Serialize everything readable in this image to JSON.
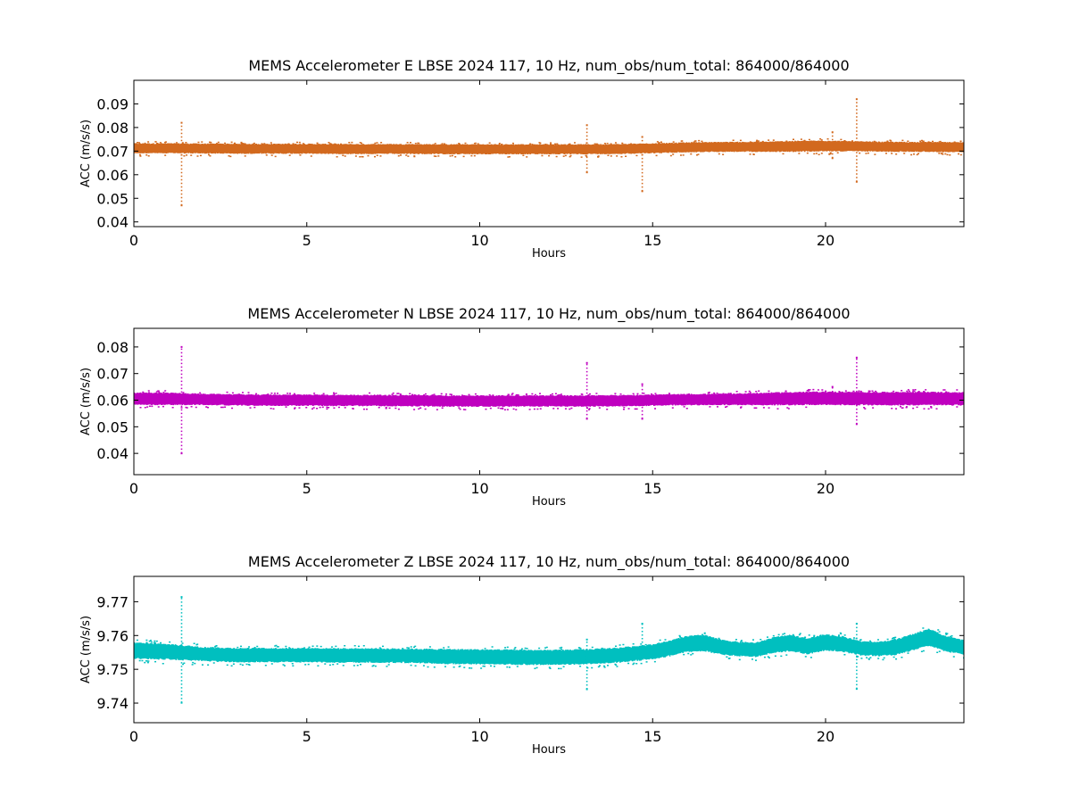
{
  "chart_data": [
    {
      "type": "scatter",
      "title": "MEMS Accelerometer E LBSE 2024 117, 10 Hz, num_obs/num_total: 864000/864000",
      "xlabel": "Hours",
      "ylabel": "ACC (m/s/s)",
      "xlim": [
        0,
        24
      ],
      "ylim": [
        0.038,
        0.1
      ],
      "xticks": [
        0,
        5,
        10,
        15,
        20
      ],
      "yticks": [
        0.04,
        0.05,
        0.06,
        0.07,
        0.08,
        0.09
      ],
      "ytick_labels": [
        "0.04",
        "0.05",
        "0.06",
        "0.07",
        "0.08",
        "0.09"
      ],
      "grid": false,
      "color": "#d2691e",
      "series": [
        {
          "x": [
            0,
            1,
            2,
            3,
            4,
            5,
            6,
            7,
            8,
            9,
            10,
            11,
            12,
            13,
            14,
            15,
            16,
            17,
            18,
            19,
            20,
            21,
            22,
            23,
            24
          ],
          "center": [
            0.0712,
            0.0712,
            0.0711,
            0.071,
            0.071,
            0.071,
            0.0709,
            0.0709,
            0.0709,
            0.0708,
            0.0708,
            0.0708,
            0.0708,
            0.0708,
            0.0709,
            0.0712,
            0.0716,
            0.0718,
            0.0718,
            0.072,
            0.0722,
            0.072,
            0.0718,
            0.0718,
            0.0716
          ],
          "half_band": [
            0.0022,
            0.0022,
            0.0022,
            0.0022,
            0.0022,
            0.0022,
            0.0022,
            0.0022,
            0.0022,
            0.0022,
            0.0022,
            0.0022,
            0.0022,
            0.0022,
            0.0022,
            0.0022,
            0.0022,
            0.0022,
            0.0022,
            0.0024,
            0.0024,
            0.0022,
            0.0022,
            0.0022,
            0.0022
          ]
        }
      ],
      "spikes": [
        {
          "x": 1.38,
          "min": 0.047,
          "max": 0.082
        },
        {
          "x": 13.1,
          "min": 0.061,
          "max": 0.081
        },
        {
          "x": 14.7,
          "min": 0.053,
          "max": 0.076
        },
        {
          "x": 20.2,
          "min": 0.067,
          "max": 0.078
        },
        {
          "x": 20.9,
          "min": 0.057,
          "max": 0.092
        }
      ]
    },
    {
      "type": "scatter",
      "title": "MEMS Accelerometer N LBSE 2024 117, 10 Hz, num_obs/num_total: 864000/864000",
      "xlabel": "Hours",
      "ylabel": "ACC (m/s/s)",
      "xlim": [
        0,
        24
      ],
      "ylim": [
        0.032,
        0.087
      ],
      "xticks": [
        0,
        5,
        10,
        15,
        20
      ],
      "yticks": [
        0.04,
        0.05,
        0.06,
        0.07,
        0.08
      ],
      "ytick_labels": [
        "0.04",
        "0.05",
        "0.06",
        "0.07",
        "0.08"
      ],
      "grid": false,
      "color": "#bf00bf",
      "series": [
        {
          "x": [
            0,
            1,
            2,
            3,
            4,
            5,
            6,
            7,
            8,
            9,
            10,
            11,
            12,
            13,
            14,
            15,
            16,
            17,
            18,
            19,
            20,
            21,
            22,
            23,
            24
          ],
          "center": [
            0.0605,
            0.0605,
            0.0603,
            0.0601,
            0.06,
            0.06,
            0.0599,
            0.0599,
            0.0598,
            0.0597,
            0.0597,
            0.0597,
            0.0597,
            0.0597,
            0.0598,
            0.06,
            0.0602,
            0.0603,
            0.0604,
            0.0606,
            0.0607,
            0.0606,
            0.0606,
            0.0606,
            0.0605
          ],
          "half_band": [
            0.0024,
            0.0024,
            0.0022,
            0.0022,
            0.0022,
            0.0022,
            0.0022,
            0.0022,
            0.0022,
            0.0022,
            0.0022,
            0.0022,
            0.0022,
            0.0022,
            0.0022,
            0.0022,
            0.0022,
            0.0022,
            0.0024,
            0.0026,
            0.0026,
            0.0026,
            0.0026,
            0.0026,
            0.0026
          ]
        }
      ],
      "spikes": [
        {
          "x": 1.38,
          "min": 0.04,
          "max": 0.08
        },
        {
          "x": 13.1,
          "min": 0.053,
          "max": 0.074
        },
        {
          "x": 14.7,
          "min": 0.053,
          "max": 0.066
        },
        {
          "x": 20.2,
          "min": 0.059,
          "max": 0.065
        },
        {
          "x": 20.9,
          "min": 0.051,
          "max": 0.076
        }
      ]
    },
    {
      "type": "scatter",
      "title": "MEMS Accelerometer Z LBSE 2024 117, 10 Hz, num_obs/num_total: 864000/864000",
      "xlabel": "Hours",
      "ylabel": "ACC (m/s/s)",
      "xlim": [
        0,
        24
      ],
      "ylim": [
        9.7342,
        9.7775
      ],
      "xticks": [
        0,
        5,
        10,
        15,
        20
      ],
      "yticks": [
        9.74,
        9.75,
        9.76,
        9.77
      ],
      "ytick_labels": [
        "9.74",
        "9.75",
        "9.76",
        "9.77"
      ],
      "grid": false,
      "color": "#00bfbf",
      "series": [
        {
          "x": [
            0,
            1,
            2,
            3,
            4,
            5,
            6,
            7,
            8,
            9,
            10,
            11,
            12,
            13,
            14,
            15,
            15.5,
            16,
            16.5,
            17,
            17.5,
            18,
            18.5,
            19,
            19.5,
            20,
            20.5,
            21,
            21.5,
            22,
            22.5,
            23,
            23.5,
            24
          ],
          "center": [
            9.7555,
            9.7552,
            9.7545,
            9.7542,
            9.7542,
            9.7542,
            9.7541,
            9.7541,
            9.754,
            9.7538,
            9.7537,
            9.7536,
            9.7535,
            9.7537,
            9.7542,
            9.7552,
            9.7562,
            9.7575,
            9.7578,
            9.7565,
            9.756,
            9.7558,
            9.7572,
            9.7578,
            9.7568,
            9.758,
            9.7575,
            9.7562,
            9.756,
            9.7565,
            9.758,
            9.7595,
            9.7575,
            9.7565
          ],
          "half_band": [
            0.0025,
            0.0024,
            0.0022,
            0.0022,
            0.0022,
            0.0022,
            0.0022,
            0.0022,
            0.0022,
            0.0023,
            0.0023,
            0.0023,
            0.0023,
            0.0023,
            0.0023,
            0.0023,
            0.0024,
            0.0025,
            0.0025,
            0.0023,
            0.0022,
            0.0022,
            0.0024,
            0.0025,
            0.0025,
            0.0025,
            0.0024,
            0.0022,
            0.0022,
            0.0024,
            0.0025,
            0.0026,
            0.0024,
            0.0022
          ]
        }
      ],
      "spikes": [
        {
          "x": 1.38,
          "min": 9.7401,
          "max": 9.7714
        },
        {
          "x": 13.1,
          "min": 9.7441,
          "max": 9.7588
        },
        {
          "x": 14.7,
          "min": 9.7536,
          "max": 9.7635
        },
        {
          "x": 20.9,
          "min": 9.7442,
          "max": 9.7635
        }
      ]
    }
  ]
}
